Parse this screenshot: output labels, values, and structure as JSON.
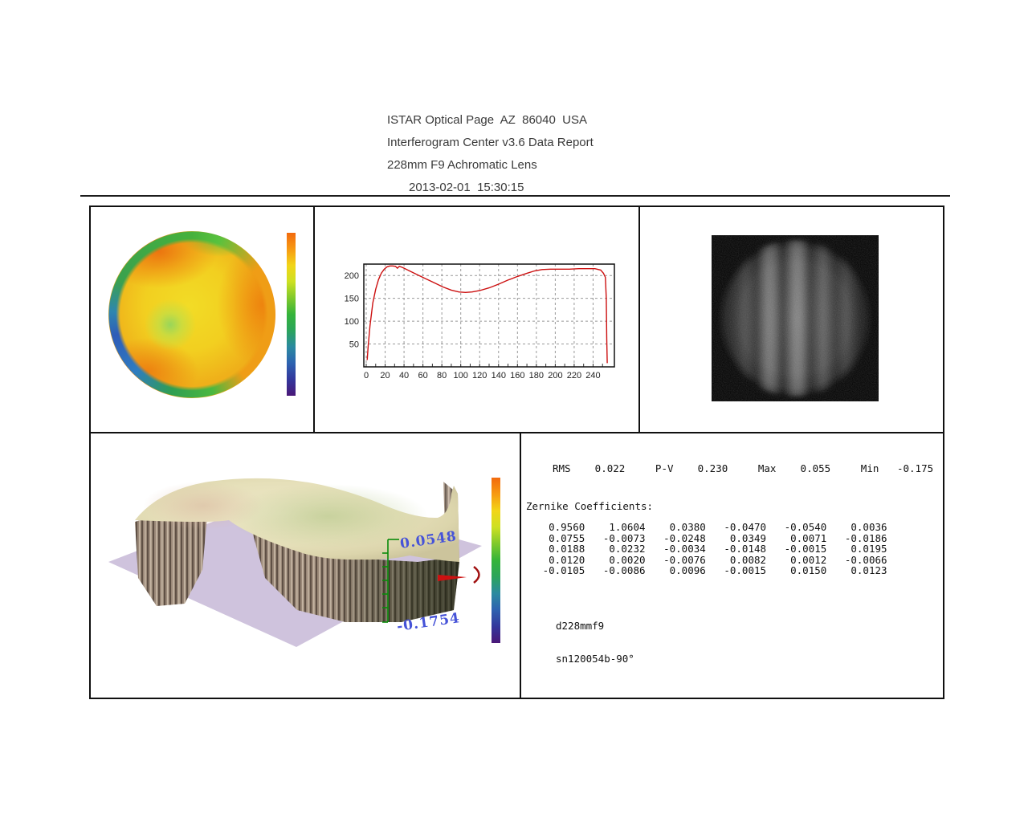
{
  "header": {
    "line1": "ISTAR Optical Page  AZ  86040  USA",
    "line2": "Interferogram Center v3.6 Data Report",
    "line3": "228mm F9 Achromatic Lens",
    "line4": "2013-02-01  15:30:15"
  },
  "colors": {
    "curve_red": "#cc1010",
    "grid_gray": "#999999",
    "panel_border": "#101010",
    "base_plane_lavender": "#cfc3dd",
    "surface_beige": "#e8e2bc",
    "z_label_blue": "#4653d8",
    "z_axis_green": "#0a8a0a"
  },
  "chart_data": [
    {
      "id": "wavefront-map",
      "type": "heatmap",
      "description": "Circular 2D wavefront error map; mostly yellow-orange, small green zone left of center, green-blue rim at left/bottom/top edges, rainbow colorbar at right (orange=high, purple=low)",
      "colorbar_colors": [
        "#f26a0e",
        "#f79a12",
        "#f2d518",
        "#cde022",
        "#7fc92c",
        "#35b43a",
        "#2ba45c",
        "#2b8aa0",
        "#2d62b0",
        "#33379c",
        "#4a1878"
      ]
    },
    {
      "id": "intensity-profile",
      "type": "line",
      "title": "",
      "xlabel": "",
      "ylabel": "",
      "xlim": [
        0,
        260
      ],
      "ylim": [
        0,
        225
      ],
      "xticks": [
        0,
        20,
        40,
        60,
        80,
        100,
        120,
        140,
        160,
        180,
        200,
        220,
        240
      ],
      "yticks": [
        50,
        100,
        150,
        200
      ],
      "minor_xtick_step": 10,
      "grid": true,
      "line_color": "#cc1010",
      "x": [
        1,
        2,
        4,
        7,
        10,
        13,
        16,
        19,
        22,
        25,
        28,
        31,
        33,
        35,
        38,
        42,
        48,
        55,
        63,
        72,
        81,
        90,
        98,
        105,
        112,
        120,
        130,
        140,
        150,
        160,
        170,
        178,
        186,
        195,
        205,
        215,
        225,
        235,
        242,
        248,
        251,
        253,
        254,
        254.5,
        255
      ],
      "y": [
        15,
        45,
        90,
        140,
        170,
        191,
        205,
        214,
        219,
        221,
        221,
        220,
        216,
        220,
        218,
        214,
        208,
        201,
        193,
        184,
        175,
        168,
        164,
        163,
        164,
        167,
        173,
        181,
        190,
        198,
        205,
        210,
        213,
        214,
        214,
        214,
        215,
        215,
        215,
        212,
        205,
        196,
        150,
        60,
        8
      ]
    },
    {
      "id": "interferogram",
      "type": "heatmap",
      "description": "Grayscale fringe photograph: dim noisy gray disk on black square, two bright vertical fringes near center plus weaker bands",
      "background": "#000000",
      "bright_fringe_positions_rel": [
        0.33,
        0.51,
        0.69
      ]
    },
    {
      "id": "surface-3d",
      "type": "surface",
      "description": "3D wavefront surface: beige wavy slab with striped brown skirt over lavender base plane, green z-axis with blue min/max labels, rainbow colorbar at right",
      "z_max_label": "0.0548",
      "z_min_label": "-0.1754"
    }
  ],
  "results": {
    "stats": [
      {
        "label": "RMS",
        "value": "0.022"
      },
      {
        "label": "P-V",
        "value": "0.230"
      },
      {
        "label": "Max",
        "value": "0.055"
      },
      {
        "label": "Min",
        "value": "-0.175"
      }
    ],
    "zernike_title": "Zernike Coefficients:",
    "zernike_rows": [
      [
        "0.9560",
        "1.0604",
        "0.0380",
        "-0.0470",
        "-0.0540",
        "0.0036"
      ],
      [
        "0.0755",
        "-0.0073",
        "-0.0248",
        "0.0349",
        "0.0071",
        "-0.0186"
      ],
      [
        "0.0188",
        "0.0232",
        "-0.0034",
        "-0.0148",
        "-0.0015",
        "0.0195"
      ],
      [
        "0.0120",
        "0.0020",
        "-0.0076",
        "0.0082",
        "0.0012",
        "-0.0066"
      ],
      [
        "-0.0105",
        "-0.0086",
        "0.0096",
        "-0.0015",
        "0.0150",
        "0.0123"
      ]
    ],
    "notes": [
      "d228mmf9",
      "sn120054b-90°"
    ]
  }
}
